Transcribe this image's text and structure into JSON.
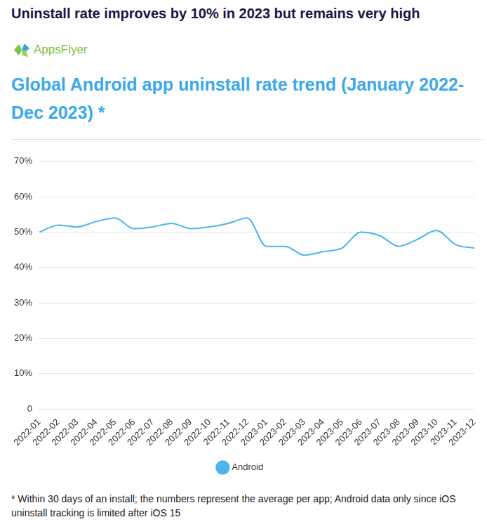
{
  "header": "Uninstall rate improves by 10% in 2023 but remains very high",
  "logo": "AppsFlyer",
  "footnote": "* Within 30 days of an install; the numbers represent the average per app; Android data only since iOS uninstall tracking is limited after iOS 15",
  "chart_data": {
    "type": "line",
    "title": "Global Android app uninstall rate trend (January 2022-Dec 2023) *",
    "categories": [
      "2022-01",
      "2022-02",
      "2022-03",
      "2022-04",
      "2022-05",
      "2022-06",
      "2022-07",
      "2022-08",
      "2022-09",
      "2022-10",
      "2022-11",
      "2022-12",
      "2023-01",
      "2023-02",
      "2023-03",
      "2023-04",
      "2023-05",
      "2023-06",
      "2023-07",
      "2023-08",
      "2023-09",
      "2023-10",
      "2023-11",
      "2023-12"
    ],
    "series": [
      {
        "name": "Android",
        "color": "#4cb5ee",
        "values": [
          50,
          52,
          51.5,
          53,
          54,
          51,
          51.5,
          52.5,
          51,
          51.5,
          52.5,
          54,
          46,
          46,
          43.5,
          44.5,
          45.5,
          50,
          49,
          46,
          48,
          50.5,
          46.5,
          45.5
        ]
      }
    ],
    "ylim": [
      0,
      70
    ],
    "yticks": [
      0,
      {
        "value": 10,
        "label": "10%"
      },
      {
        "value": 20,
        "label": "20%"
      },
      {
        "value": 30,
        "label": "30%"
      },
      {
        "value": 40,
        "label": "40%"
      },
      {
        "value": 50,
        "label": "50%"
      },
      {
        "value": 60,
        "label": "60%"
      },
      {
        "value": 70,
        "label": "70%"
      }
    ],
    "grid": true,
    "legend": "bottom",
    "marker": "none",
    "line_style": "solid"
  }
}
